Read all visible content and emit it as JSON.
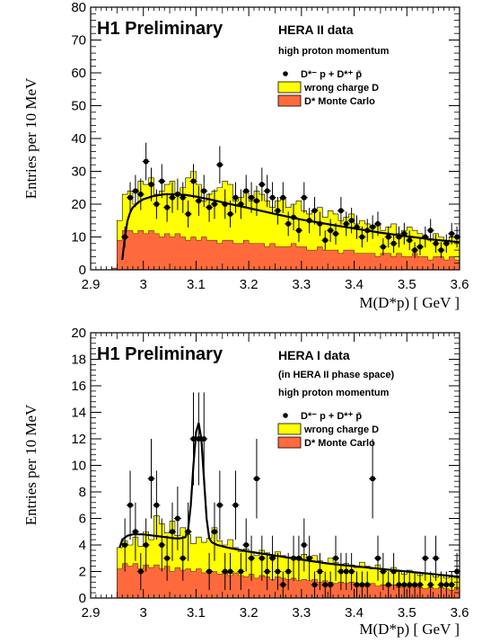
{
  "colors": {
    "wrong_charge": "#ffff00",
    "monte_carlo": "#ff6a3d",
    "fit": "#000000",
    "data": "#000000"
  },
  "chart_data": [
    {
      "type": "bar",
      "title": "H1 Preliminary",
      "subtitle": "HERA II data",
      "subtitle2": "",
      "note": "high proton momentum",
      "ylabel": "Entries per 10 MeV",
      "xlabel": "M(D*p) [ GeV ]",
      "xlim": [
        2.9,
        3.6
      ],
      "ylim": [
        0,
        80
      ],
      "xticks": [
        "2.9",
        "3",
        "3.1",
        "3.2",
        "3.3",
        "3.4",
        "3.5",
        "3.6"
      ],
      "yticks": [
        "0",
        "10",
        "20",
        "30",
        "40",
        "50",
        "60",
        "70",
        "80"
      ],
      "legend": [
        "D*⁻ p + D*⁺ p̄",
        "wrong charge D",
        "D* Monte Carlo"
      ],
      "bin_edges_start": 2.94,
      "bin_width": 0.01,
      "series": [
        {
          "name": "wrong charge D",
          "values": [
            0.5,
            15,
            23,
            24,
            20,
            27,
            26,
            28,
            23,
            24,
            26,
            27,
            23,
            25,
            28,
            30,
            26,
            21,
            23,
            24,
            25,
            27,
            26,
            21,
            22,
            24,
            21,
            24,
            23,
            21,
            19,
            21,
            22,
            19,
            20,
            21,
            18,
            17,
            18,
            19,
            16,
            18,
            17,
            15,
            16,
            17,
            14,
            15,
            14,
            13,
            14,
            12,
            13,
            14,
            11,
            12,
            13,
            12,
            11,
            10,
            9,
            11,
            10,
            9,
            10,
            10,
            9
          ]
        },
        {
          "name": "D* Monte Carlo",
          "values": [
            0.5,
            9,
            12,
            12,
            11,
            12,
            11,
            12,
            11,
            10,
            11,
            10,
            11,
            10,
            9,
            10,
            9,
            10,
            9,
            9,
            8,
            9,
            9,
            8,
            8,
            9,
            8,
            8,
            8,
            7,
            8,
            7,
            7,
            7,
            8,
            7,
            7,
            6,
            6,
            7,
            6,
            6,
            6,
            5,
            6,
            6,
            5,
            5,
            5,
            5,
            4,
            5,
            5,
            4,
            5,
            4,
            4,
            5,
            4,
            4,
            3,
            4,
            4,
            3,
            4,
            3,
            3
          ]
        },
        {
          "name": "D*⁻ p + D*⁺ p̄",
          "x": [
            2.965,
            2.975,
            2.985,
            2.995,
            3.005,
            3.015,
            3.025,
            3.035,
            3.045,
            3.055,
            3.065,
            3.075,
            3.085,
            3.095,
            3.105,
            3.115,
            3.125,
            3.135,
            3.145,
            3.155,
            3.165,
            3.175,
            3.185,
            3.195,
            3.205,
            3.215,
            3.225,
            3.235,
            3.245,
            3.255,
            3.265,
            3.275,
            3.285,
            3.295,
            3.305,
            3.315,
            3.325,
            3.335,
            3.345,
            3.355,
            3.365,
            3.375,
            3.385,
            3.395,
            3.405,
            3.415,
            3.425,
            3.435,
            3.445,
            3.455,
            3.465,
            3.475,
            3.485,
            3.495,
            3.505,
            3.515,
            3.525,
            3.535,
            3.545,
            3.555,
            3.565,
            3.575,
            3.585,
            3.595
          ],
          "values": [
            10,
            22,
            24,
            23,
            33,
            26,
            20,
            27,
            19,
            22,
            23,
            22,
            17,
            27,
            21,
            24,
            19,
            20,
            32,
            20,
            17,
            22,
            20,
            24,
            22,
            21,
            26,
            24,
            22,
            18,
            22,
            14,
            16,
            12,
            22,
            15,
            18,
            14,
            9,
            12,
            11,
            18,
            14,
            15,
            13,
            10,
            12,
            13,
            14,
            7,
            10,
            8,
            10,
            11,
            9,
            6,
            7,
            10,
            12,
            8,
            6,
            8,
            11,
            10
          ],
          "errors": [
            3.2,
            4.7,
            4.9,
            4.8,
            5.7,
            5.1,
            4.5,
            5.2,
            4.4,
            4.7,
            4.8,
            4.7,
            4.1,
            5.2,
            4.6,
            4.9,
            4.4,
            4.5,
            5.7,
            4.5,
            4.1,
            4.7,
            4.5,
            4.9,
            4.7,
            4.6,
            5.1,
            4.9,
            4.7,
            4.2,
            4.7,
            3.7,
            4.0,
            3.5,
            4.7,
            3.9,
            4.2,
            3.7,
            3.0,
            3.5,
            3.3,
            4.2,
            3.7,
            3.9,
            3.6,
            3.2,
            3.5,
            3.6,
            3.7,
            2.6,
            3.2,
            2.8,
            3.2,
            3.3,
            3.0,
            2.4,
            2.6,
            3.2,
            3.5,
            2.8,
            2.4,
            2.8,
            3.3,
            3.2
          ]
        }
      ],
      "fit": {
        "x": [
          2.96,
          2.965,
          2.97,
          2.975,
          2.98,
          2.99,
          3.0,
          3.02,
          3.04,
          3.06,
          3.08,
          3.1,
          3.13,
          3.16,
          3.2,
          3.25,
          3.3,
          3.35,
          3.4,
          3.45,
          3.5,
          3.55,
          3.6
        ],
        "y": [
          3,
          10,
          15,
          17.5,
          19,
          20.5,
          21.5,
          22.5,
          23,
          23,
          22.8,
          22.3,
          21.3,
          20.2,
          18.8,
          17,
          15.3,
          13.9,
          12.6,
          11.3,
          10.2,
          9.2,
          8.4
        ]
      }
    },
    {
      "type": "bar",
      "title": "H1 Preliminary",
      "subtitle": "HERA I data",
      "subtitle2": "(in HERA II phase space)",
      "note": "high proton momentum",
      "ylabel": "Entries per 10 MeV",
      "xlabel": "M(D*p) [ GeV ]",
      "xlim": [
        2.9,
        3.6
      ],
      "ylim": [
        0,
        20
      ],
      "xticks": [
        "2.9",
        "3",
        "3.1",
        "3.2",
        "3.3",
        "3.4",
        "3.5",
        "3.6"
      ],
      "yticks": [
        "0",
        "2",
        "4",
        "6",
        "8",
        "10",
        "12",
        "14",
        "16",
        "18",
        "20"
      ],
      "legend": [
        "D*⁻ p + D*⁺ p̄",
        "wrong charge D",
        "D* Monte Carlo"
      ],
      "bin_edges_start": 2.95,
      "bin_width": 0.01,
      "series": [
        {
          "name": "wrong charge D",
          "values": [
            3.8,
            4.3,
            4.0,
            4.6,
            3.9,
            5.0,
            4.4,
            6.2,
            5.6,
            4.9,
            5.8,
            4.7,
            5.3,
            4.8,
            4.1,
            4.6,
            4.2,
            4.5,
            5.3,
            4.3,
            4.0,
            4.4,
            3.8,
            3.5,
            3.7,
            3.5,
            3.2,
            3.6,
            3.4,
            3.0,
            3.5,
            3.2,
            3.0,
            3.1,
            2.9,
            3.3,
            3.0,
            3.2,
            2.8,
            2.6,
            3.0,
            2.7,
            2.5,
            2.6,
            2.5,
            2.3,
            2.7,
            2.4,
            2.2,
            2.5,
            2.2,
            2.1,
            2.3,
            2.0,
            1.8,
            2.1,
            1.9,
            1.7,
            1.9,
            1.8,
            1.6,
            1.7,
            1.5,
            1.6,
            1.5
          ]
        },
        {
          "name": "D* Monte Carlo",
          "values": [
            2.2,
            2.6,
            2.4,
            2.6,
            2.2,
            2.5,
            2.3,
            2.5,
            2.2,
            2.4,
            2.0,
            2.3,
            2.1,
            2.2,
            2.0,
            2.2,
            1.9,
            2.1,
            2.0,
            1.8,
            2.0,
            1.7,
            1.9,
            1.7,
            1.6,
            1.8,
            1.5,
            1.7,
            1.6,
            1.4,
            1.6,
            1.5,
            1.4,
            1.5,
            1.3,
            1.4,
            1.3,
            1.4,
            1.2,
            1.3,
            1.2,
            1.1,
            1.2,
            1.1,
            1.2,
            1.0,
            1.1,
            1.0,
            1.1,
            0.9,
            1.0,
            0.9,
            1.0,
            0.8,
            0.9,
            0.8,
            0.9,
            0.8,
            0.7,
            0.8,
            0.7,
            0.8,
            0.7,
            0.6,
            0.7
          ]
        },
        {
          "name": "D*⁻ p + D*⁺ p̄",
          "x": [
            2.965,
            2.975,
            2.985,
            2.995,
            3.005,
            3.015,
            3.025,
            3.035,
            3.045,
            3.055,
            3.065,
            3.075,
            3.085,
            3.095,
            3.105,
            3.115,
            3.125,
            3.135,
            3.145,
            3.155,
            3.165,
            3.175,
            3.185,
            3.195,
            3.205,
            3.215,
            3.225,
            3.235,
            3.245,
            3.255,
            3.265,
            3.275,
            3.285,
            3.295,
            3.305,
            3.315,
            3.325,
            3.335,
            3.345,
            3.355,
            3.365,
            3.375,
            3.385,
            3.395,
            3.405,
            3.415,
            3.425,
            3.435,
            3.445,
            3.455,
            3.465,
            3.475,
            3.485,
            3.495,
            3.505,
            3.515,
            3.525,
            3.535,
            3.545,
            3.555,
            3.565,
            3.575,
            3.585,
            3.595
          ],
          "values": [
            4,
            7,
            5,
            2,
            4,
            9,
            7,
            4,
            3,
            5,
            6,
            3,
            5,
            12,
            12,
            12,
            2,
            5,
            7,
            2,
            2,
            7,
            2,
            4,
            3,
            9,
            3,
            2,
            3,
            2,
            1,
            2,
            3,
            3,
            4,
            3,
            1,
            2,
            1,
            1,
            3,
            2,
            2,
            2,
            1,
            1,
            1,
            9,
            3,
            2,
            1,
            2,
            1,
            1,
            1,
            1,
            1,
            3,
            1,
            3,
            1,
            1,
            1,
            2
          ],
          "errors": [
            2.0,
            2.6,
            2.2,
            1.4,
            2.0,
            3.0,
            2.6,
            2.0,
            1.7,
            2.2,
            2.4,
            1.7,
            2.2,
            3.5,
            3.5,
            3.5,
            1.4,
            2.2,
            2.6,
            1.4,
            1.4,
            2.6,
            1.4,
            2.0,
            1.7,
            3.0,
            1.7,
            1.4,
            1.7,
            1.4,
            1.0,
            1.4,
            1.7,
            1.7,
            2.0,
            1.7,
            1.0,
            1.4,
            1.0,
            1.0,
            1.7,
            1.4,
            1.4,
            1.4,
            1.0,
            1.0,
            1.0,
            3.0,
            1.7,
            1.4,
            1.0,
            1.4,
            1.0,
            1.0,
            1.0,
            1.0,
            1.0,
            1.7,
            1.0,
            1.7,
            1.0,
            1.0,
            1.0,
            1.4
          ]
        },
        {
          "name": "wrong charge D",
          "values": []
        }
      ],
      "fit": {
        "x": [
          2.955,
          2.96,
          2.97,
          2.98,
          3.0,
          3.02,
          3.04,
          3.06,
          3.07,
          3.08,
          3.085,
          3.09,
          3.095,
          3.1,
          3.105,
          3.11,
          3.115,
          3.12,
          3.125,
          3.13,
          3.14,
          3.16,
          3.2,
          3.25,
          3.3,
          3.35,
          3.4,
          3.45,
          3.5,
          3.55,
          3.6
        ],
        "y": [
          3.8,
          4.4,
          4.7,
          4.8,
          4.8,
          4.7,
          4.6,
          4.5,
          4.5,
          4.6,
          5.2,
          7.0,
          10.0,
          12.5,
          13.2,
          12.0,
          9.0,
          6.0,
          4.5,
          4.2,
          4.0,
          3.8,
          3.5,
          3.2,
          2.9,
          2.6,
          2.4,
          2.2,
          2.0,
          1.8,
          1.6
        ]
      }
    }
  ]
}
